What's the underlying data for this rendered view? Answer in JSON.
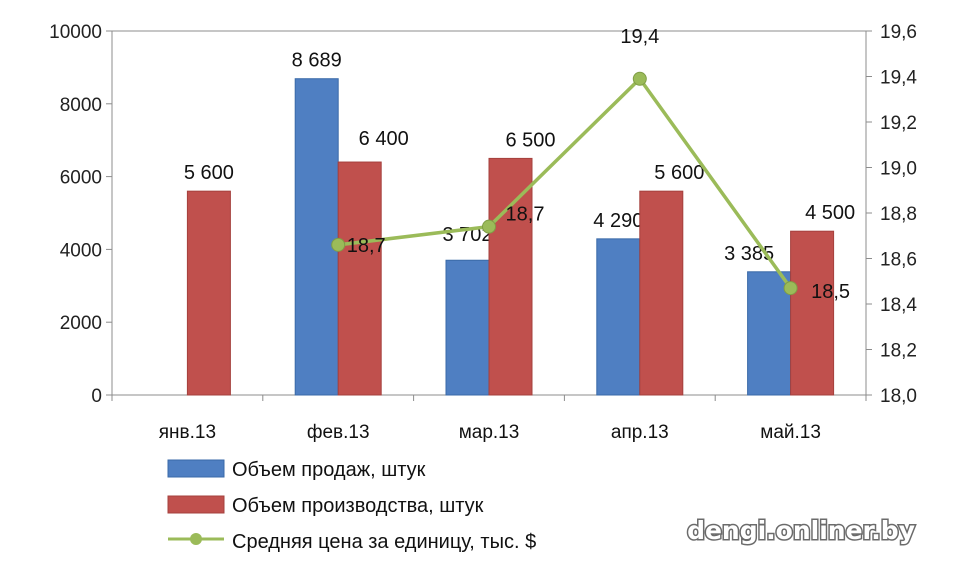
{
  "watermark": "dengi.onliner.by",
  "chart_data": {
    "type": "bar",
    "categories": [
      "янв.13",
      "фев.13",
      "мар.13",
      "апр.13",
      "май.13"
    ],
    "y_left": {
      "min": 0,
      "max": 10000,
      "ticks": [
        "0",
        "2000",
        "4000",
        "6000",
        "8000",
        "10000"
      ]
    },
    "y_right": {
      "min": 18.0,
      "max": 19.6,
      "ticks": [
        "18,0",
        "18,2",
        "18,4",
        "18,6",
        "18,8",
        "19,0",
        "19,2",
        "19,4",
        "19,6"
      ]
    },
    "grid": false,
    "legend_position": "bottom-left",
    "series": [
      {
        "name": "Объем продаж, штук",
        "type": "bar",
        "axis": "left",
        "color": "#4f7fc2",
        "values": [
          null,
          8689,
          3702,
          4290,
          3385
        ],
        "labels": [
          "",
          "8 689",
          "3 702",
          "4 290",
          "3 385"
        ]
      },
      {
        "name": "Объем производства, штук",
        "type": "bar",
        "axis": "left",
        "color": "#c0504d",
        "values": [
          5600,
          6400,
          6500,
          5600,
          4500
        ],
        "labels": [
          "5 600",
          "6 400",
          "6 500",
          "5 600",
          "4 500"
        ]
      },
      {
        "name": "Средняя  цена за единицу,  тыс. $",
        "type": "line",
        "axis": "right",
        "color": "#9bbb59",
        "values": [
          null,
          18.66,
          18.74,
          19.39,
          18.47
        ],
        "labels": [
          "",
          "18,7",
          "18,7",
          "19,4",
          "18,5"
        ]
      }
    ]
  }
}
